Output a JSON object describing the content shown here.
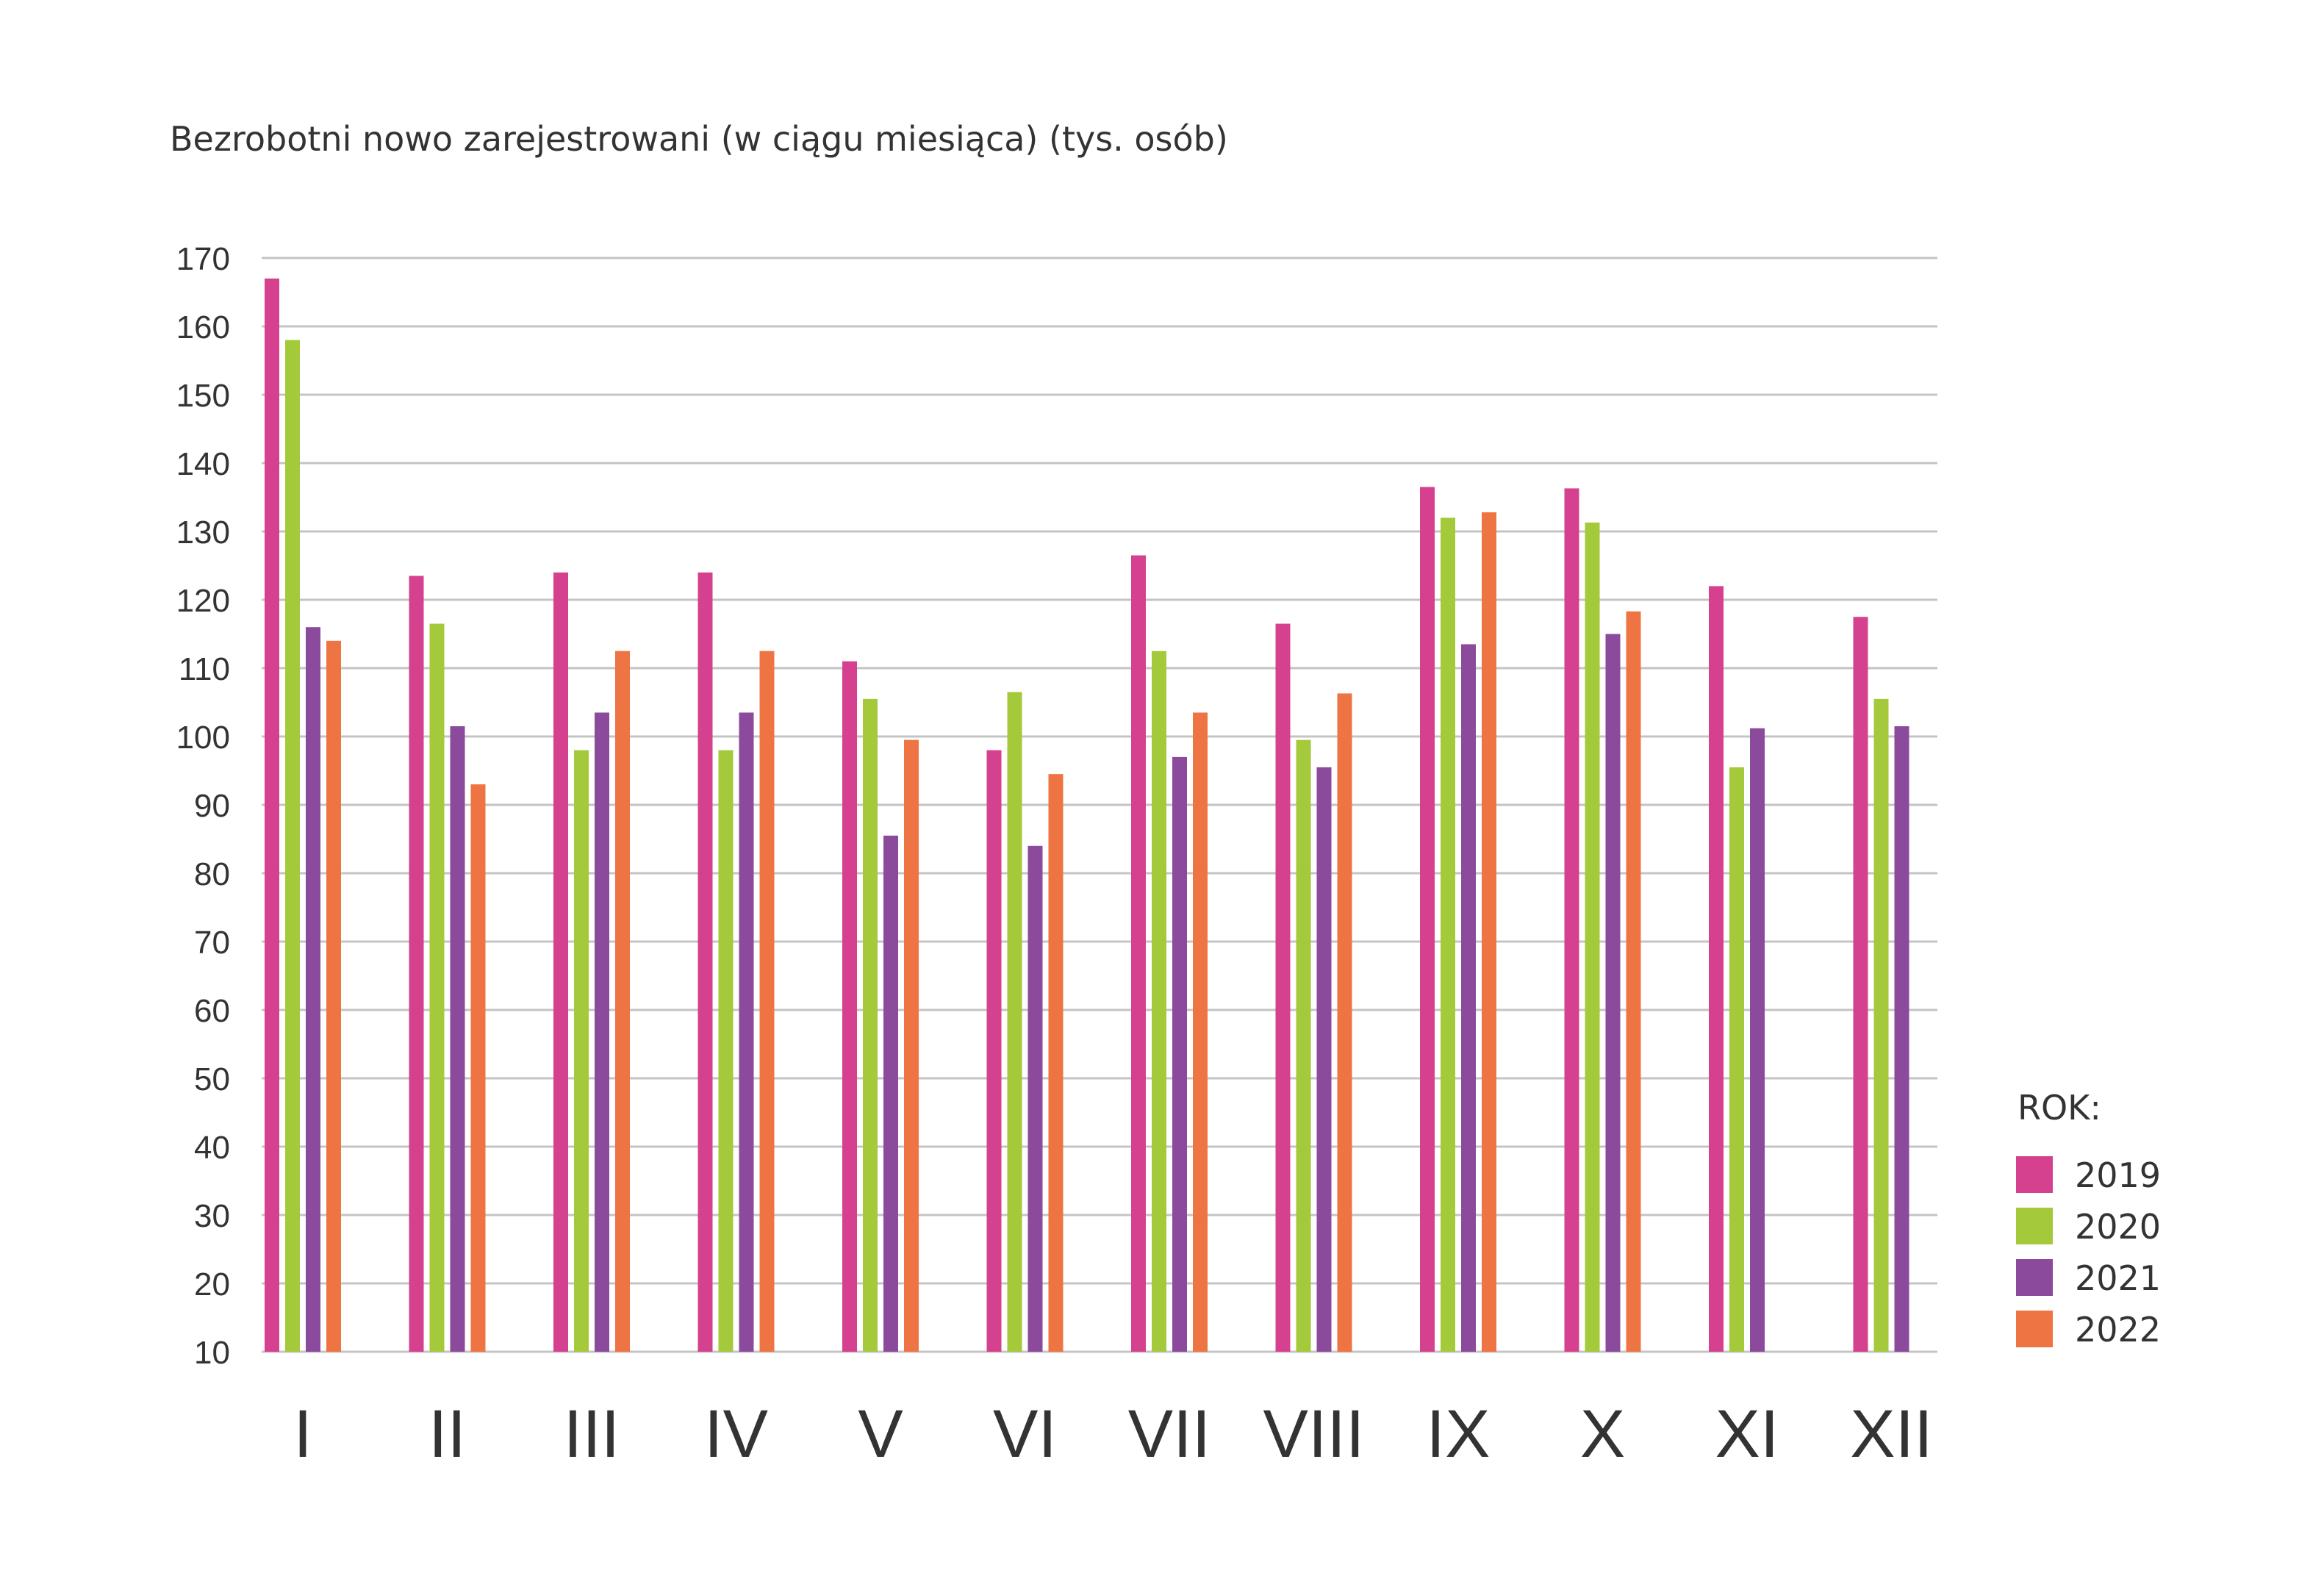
{
  "chart_data": {
    "type": "bar",
    "title": "Bezrobotni nowo zarejestrowani (w ciągu miesiąca) (tys. osób)",
    "xlabel": "",
    "ylabel": "",
    "categories": [
      "I",
      "II",
      "III",
      "IV",
      "V",
      "VI",
      "VII",
      "VIII",
      "IX",
      "X",
      "XI",
      "XII"
    ],
    "yticks": [
      10,
      20,
      30,
      40,
      50,
      60,
      70,
      80,
      90,
      100,
      110,
      120,
      130,
      140,
      150,
      160,
      170
    ],
    "ylim": [
      10,
      170
    ],
    "grid": true,
    "legend": {
      "title": "ROK:",
      "placement": "right"
    },
    "series": [
      {
        "name": "2019",
        "color": "#d6418f",
        "values": [
          167,
          123.5,
          124,
          124,
          111,
          98,
          126.5,
          116.5,
          136.5,
          136.3,
          122,
          117.5
        ]
      },
      {
        "name": "2020",
        "color": "#a4c93a",
        "values": [
          158,
          116.5,
          98,
          98,
          105.5,
          106.5,
          112.5,
          99.5,
          132,
          131.3,
          95.5,
          105.5
        ]
      },
      {
        "name": "2021",
        "color": "#8b4a9c",
        "values": [
          116,
          101.5,
          103.5,
          103.5,
          85.5,
          84,
          97,
          95.5,
          113.5,
          115,
          101.2,
          101.5
        ]
      },
      {
        "name": "2022",
        "color": "#ef7443",
        "values": [
          114,
          93,
          112.5,
          112.5,
          99.5,
          94.5,
          103.5,
          106.3,
          132.8,
          118.3,
          null,
          null
        ]
      }
    ]
  }
}
